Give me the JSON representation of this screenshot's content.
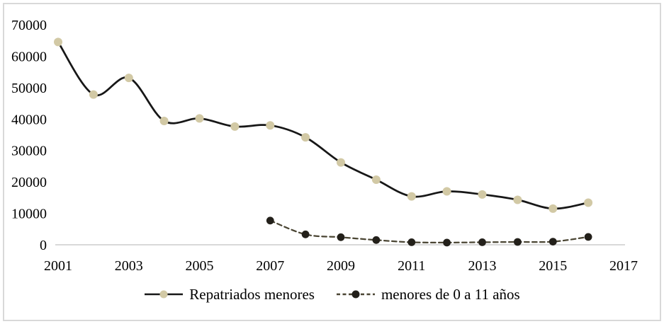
{
  "chart_data": {
    "type": "line",
    "title": "",
    "xlabel": "",
    "ylabel": "",
    "xlim": [
      2001,
      2017
    ],
    "ylim": [
      0,
      70000
    ],
    "x_ticks": [
      2001,
      2003,
      2005,
      2007,
      2009,
      2011,
      2013,
      2015,
      2017
    ],
    "y_ticks": [
      0,
      10000,
      20000,
      30000,
      40000,
      50000,
      60000,
      70000
    ],
    "grid": false,
    "legend_position": "bottom-center",
    "axis_color": "#d9d9d9",
    "frame_color": "#d9d9d9",
    "text_color": "#000000",
    "series": [
      {
        "name": "Repatriados menores",
        "line_style": "solid",
        "line_color": "#171717",
        "marker_color": "#d2c9a5",
        "x": [
          2001,
          2002,
          2003,
          2004,
          2005,
          2006,
          2007,
          2008,
          2009,
          2010,
          2011,
          2012,
          2013,
          2014,
          2015,
          2016
        ],
        "values": [
          64500,
          47800,
          53100,
          39400,
          40200,
          37600,
          38000,
          34200,
          26200,
          20700,
          15400,
          17000,
          16000,
          14300,
          11500,
          13400
        ]
      },
      {
        "name": "menores de 0 a 11 años",
        "line_style": "dashed",
        "line_color": "#4a4533",
        "marker_color": "#23201a",
        "x": [
          2007,
          2008,
          2009,
          2010,
          2011,
          2012,
          2013,
          2014,
          2015,
          2016
        ],
        "values": [
          7700,
          3300,
          2400,
          1500,
          800,
          700,
          800,
          900,
          1000,
          2500
        ]
      }
    ]
  }
}
